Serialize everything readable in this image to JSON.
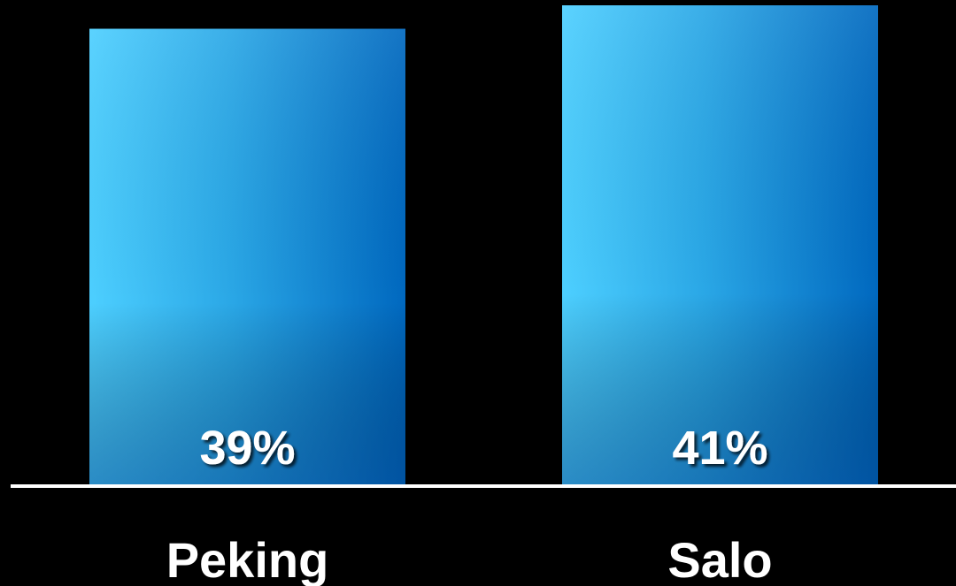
{
  "chart_data": {
    "type": "bar",
    "title": "",
    "xlabel": "",
    "ylabel": "",
    "categories": [
      "Peking",
      "Salo"
    ],
    "values": [
      39,
      41
    ],
    "value_labels": [
      "39%",
      "41%"
    ],
    "unit": "%",
    "ylim": [
      0,
      41
    ],
    "grid": false,
    "legend": "none",
    "baseline_visible": true
  },
  "colors": {
    "background": "#000000",
    "bar_light": "#4dcfff",
    "bar_dark": "#0068bf",
    "baseline": "#ffffff",
    "text": "#ffffff"
  }
}
